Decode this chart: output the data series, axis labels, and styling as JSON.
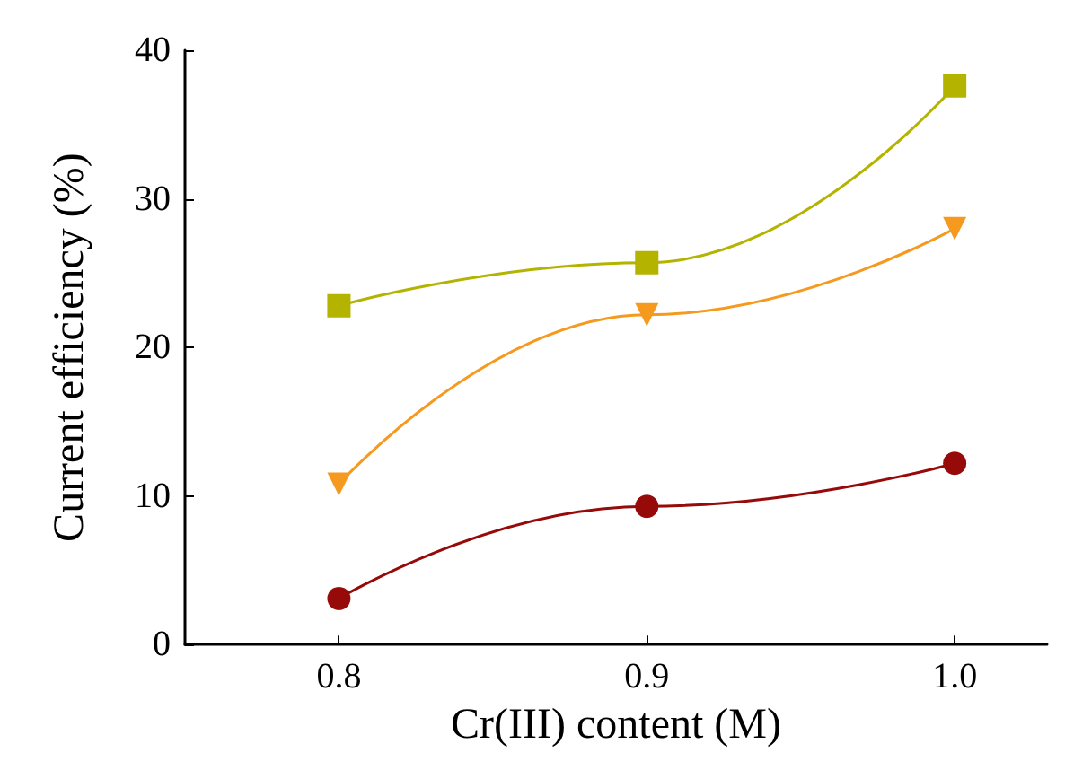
{
  "chart_data": {
    "type": "line",
    "xlabel": "Cr(III) content (M)",
    "ylabel": "Current efficiency (%)",
    "x": [
      0.8,
      0.9,
      1.0
    ],
    "series": [
      {
        "color": "#b3b300",
        "marker": "square",
        "values": [
          22.8,
          25.7,
          37.6
        ]
      },
      {
        "color": "#f59a1e",
        "marker": "triangle",
        "values": [
          10.8,
          22.2,
          28.0
        ]
      },
      {
        "color": "#960a0a",
        "marker": "circle",
        "values": [
          3.1,
          9.3,
          12.2
        ]
      }
    ],
    "xlim": [
      0.75,
      1.03
    ],
    "xticks": [
      0.8,
      0.9,
      {
        "value": 1.0,
        "label": "1.0"
      }
    ],
    "ylim": [
      0,
      40
    ],
    "yticks": [
      0,
      10,
      20,
      30,
      40
    ],
    "grid": false
  }
}
